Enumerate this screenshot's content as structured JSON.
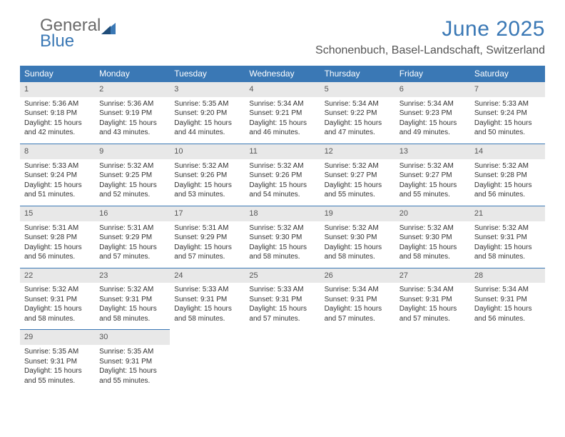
{
  "logo": {
    "part1": "General",
    "part2": "Blue"
  },
  "title": "June 2025",
  "location": "Schonenbuch, Basel-Landschaft, Switzerland",
  "colors": {
    "header_bg": "#3a78b5",
    "header_text": "#ffffff",
    "daynum_bg": "#e8e8e8",
    "daynum_text": "#555555",
    "border": "#3a78b5",
    "title_color": "#3a78b5",
    "logo_gray": "#6a6a6a",
    "logo_blue": "#3a78b5",
    "body_text": "#333333",
    "loc_text": "#555555",
    "page_bg": "#ffffff"
  },
  "weekdays": [
    "Sunday",
    "Monday",
    "Tuesday",
    "Wednesday",
    "Thursday",
    "Friday",
    "Saturday"
  ],
  "weeks": [
    [
      {
        "day": "1",
        "sunrise": "5:36 AM",
        "sunset": "9:18 PM",
        "daylight": "15 hours and 42 minutes."
      },
      {
        "day": "2",
        "sunrise": "5:36 AM",
        "sunset": "9:19 PM",
        "daylight": "15 hours and 43 minutes."
      },
      {
        "day": "3",
        "sunrise": "5:35 AM",
        "sunset": "9:20 PM",
        "daylight": "15 hours and 44 minutes."
      },
      {
        "day": "4",
        "sunrise": "5:34 AM",
        "sunset": "9:21 PM",
        "daylight": "15 hours and 46 minutes."
      },
      {
        "day": "5",
        "sunrise": "5:34 AM",
        "sunset": "9:22 PM",
        "daylight": "15 hours and 47 minutes."
      },
      {
        "day": "6",
        "sunrise": "5:34 AM",
        "sunset": "9:23 PM",
        "daylight": "15 hours and 49 minutes."
      },
      {
        "day": "7",
        "sunrise": "5:33 AM",
        "sunset": "9:24 PM",
        "daylight": "15 hours and 50 minutes."
      }
    ],
    [
      {
        "day": "8",
        "sunrise": "5:33 AM",
        "sunset": "9:24 PM",
        "daylight": "15 hours and 51 minutes."
      },
      {
        "day": "9",
        "sunrise": "5:32 AM",
        "sunset": "9:25 PM",
        "daylight": "15 hours and 52 minutes."
      },
      {
        "day": "10",
        "sunrise": "5:32 AM",
        "sunset": "9:26 PM",
        "daylight": "15 hours and 53 minutes."
      },
      {
        "day": "11",
        "sunrise": "5:32 AM",
        "sunset": "9:26 PM",
        "daylight": "15 hours and 54 minutes."
      },
      {
        "day": "12",
        "sunrise": "5:32 AM",
        "sunset": "9:27 PM",
        "daylight": "15 hours and 55 minutes."
      },
      {
        "day": "13",
        "sunrise": "5:32 AM",
        "sunset": "9:27 PM",
        "daylight": "15 hours and 55 minutes."
      },
      {
        "day": "14",
        "sunrise": "5:32 AM",
        "sunset": "9:28 PM",
        "daylight": "15 hours and 56 minutes."
      }
    ],
    [
      {
        "day": "15",
        "sunrise": "5:31 AM",
        "sunset": "9:28 PM",
        "daylight": "15 hours and 56 minutes."
      },
      {
        "day": "16",
        "sunrise": "5:31 AM",
        "sunset": "9:29 PM",
        "daylight": "15 hours and 57 minutes."
      },
      {
        "day": "17",
        "sunrise": "5:31 AM",
        "sunset": "9:29 PM",
        "daylight": "15 hours and 57 minutes."
      },
      {
        "day": "18",
        "sunrise": "5:32 AM",
        "sunset": "9:30 PM",
        "daylight": "15 hours and 58 minutes."
      },
      {
        "day": "19",
        "sunrise": "5:32 AM",
        "sunset": "9:30 PM",
        "daylight": "15 hours and 58 minutes."
      },
      {
        "day": "20",
        "sunrise": "5:32 AM",
        "sunset": "9:30 PM",
        "daylight": "15 hours and 58 minutes."
      },
      {
        "day": "21",
        "sunrise": "5:32 AM",
        "sunset": "9:31 PM",
        "daylight": "15 hours and 58 minutes."
      }
    ],
    [
      {
        "day": "22",
        "sunrise": "5:32 AM",
        "sunset": "9:31 PM",
        "daylight": "15 hours and 58 minutes."
      },
      {
        "day": "23",
        "sunrise": "5:32 AM",
        "sunset": "9:31 PM",
        "daylight": "15 hours and 58 minutes."
      },
      {
        "day": "24",
        "sunrise": "5:33 AM",
        "sunset": "9:31 PM",
        "daylight": "15 hours and 58 minutes."
      },
      {
        "day": "25",
        "sunrise": "5:33 AM",
        "sunset": "9:31 PM",
        "daylight": "15 hours and 57 minutes."
      },
      {
        "day": "26",
        "sunrise": "5:34 AM",
        "sunset": "9:31 PM",
        "daylight": "15 hours and 57 minutes."
      },
      {
        "day": "27",
        "sunrise": "5:34 AM",
        "sunset": "9:31 PM",
        "daylight": "15 hours and 57 minutes."
      },
      {
        "day": "28",
        "sunrise": "5:34 AM",
        "sunset": "9:31 PM",
        "daylight": "15 hours and 56 minutes."
      }
    ],
    [
      {
        "day": "29",
        "sunrise": "5:35 AM",
        "sunset": "9:31 PM",
        "daylight": "15 hours and 55 minutes."
      },
      {
        "day": "30",
        "sunrise": "5:35 AM",
        "sunset": "9:31 PM",
        "daylight": "15 hours and 55 minutes."
      },
      null,
      null,
      null,
      null,
      null
    ]
  ],
  "labels": {
    "sunrise": "Sunrise:",
    "sunset": "Sunset:",
    "daylight": "Daylight:"
  }
}
